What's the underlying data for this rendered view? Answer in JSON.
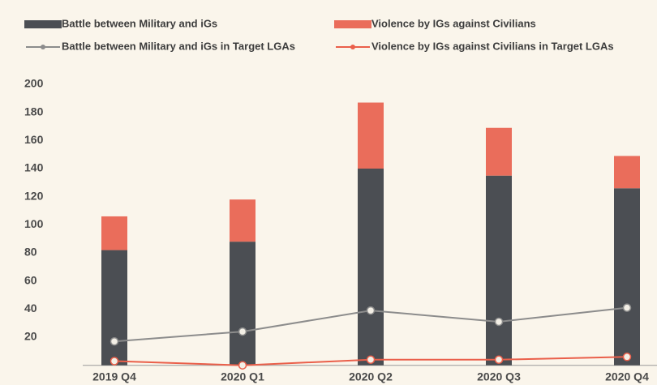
{
  "chart_data": {
    "type": "bar",
    "stacked": true,
    "categories": [
      "2019 Q4",
      "2020 Q1",
      "2020 Q2",
      "2020 Q3",
      "2020 Q4"
    ],
    "series": [
      {
        "name": "Battle between Military and iGs",
        "type": "bar",
        "color": "#4b4e53",
        "values": [
          82,
          88,
          140,
          135,
          126
        ]
      },
      {
        "name": "Violence by IGs against Civilians",
        "type": "bar",
        "color": "#ea6d5b",
        "values": [
          24,
          30,
          47,
          34,
          23
        ]
      },
      {
        "name": "Battle between Military and iGs in Target LGAs",
        "type": "line",
        "color": "#8c8c8c",
        "values": [
          17,
          24,
          39,
          31,
          41
        ]
      },
      {
        "name": "Violence by IGs against Civilians in Target LGAs",
        "type": "line",
        "color": "#ea5f4a",
        "values": [
          3,
          0,
          4,
          4,
          6
        ]
      }
    ],
    "ylim": [
      0,
      200
    ],
    "yticks": [
      20,
      40,
      60,
      80,
      100,
      120,
      140,
      160,
      180,
      200
    ]
  }
}
